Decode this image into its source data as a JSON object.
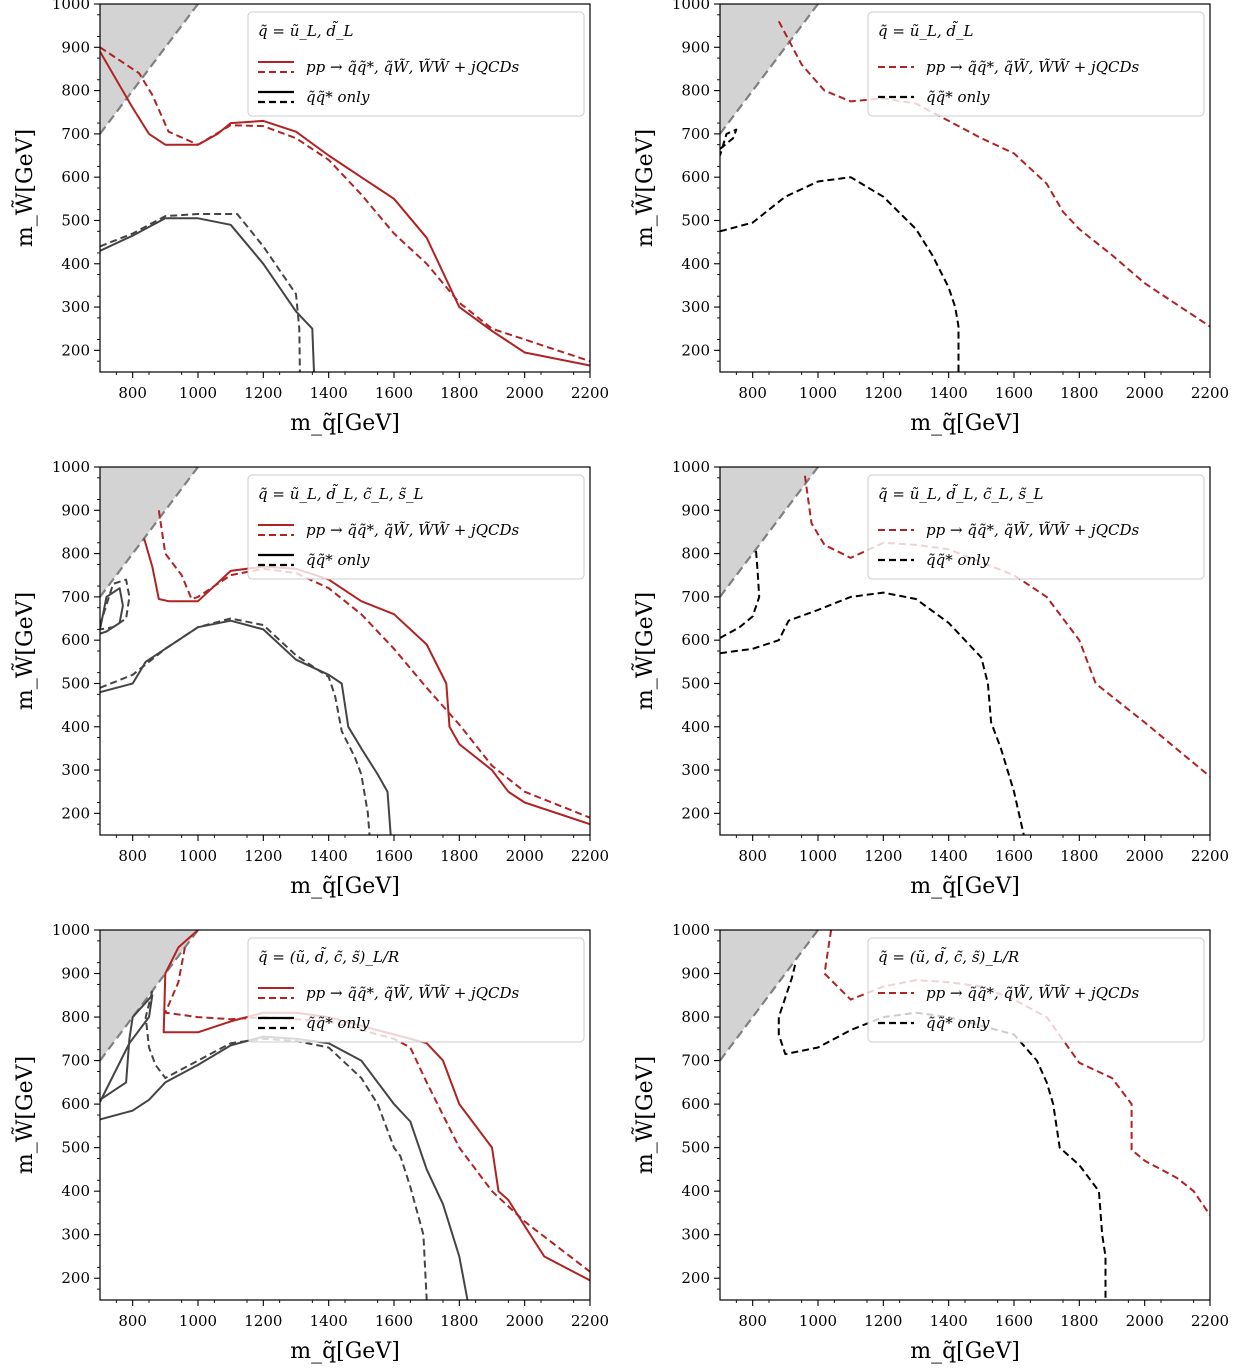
{
  "chart_data": [
    {
      "type": "line",
      "xlabel": "m_q̃[GeV]",
      "ylabel": "m_W̃[GeV]",
      "xlim": [
        700,
        2200
      ],
      "ylim": [
        150,
        1000
      ],
      "xticks": [
        800,
        1000,
        1200,
        1400,
        1600,
        1800,
        2000,
        2200
      ],
      "yticks": [
        200,
        300,
        400,
        500,
        600,
        700,
        800,
        900,
        1000
      ],
      "grid": false,
      "legend_position": "top-right",
      "legend": {
        "title": "q̃ = ũ_L, d̃_L",
        "entries": [
          "pp → q̃q̃*,  q̃W̃,  W̃W̃ + jQCDs",
          "q̃q̃* only"
        ]
      },
      "excluded_region": {
        "kinematic_line": "m_W̃ = m_q̃",
        "color": "#d3d3d3"
      },
      "colors": {
        "full": "#b22222",
        "only": "#444444"
      },
      "series": [
        {
          "style": "solid",
          "color": "#b22222",
          "x": [
            700,
            800,
            850,
            900,
            1000,
            1060,
            1100,
            1200,
            1300,
            1400,
            1500,
            1600,
            1700,
            1800,
            1900,
            2000,
            2200
          ],
          "y": [
            890,
            760,
            700,
            675,
            675,
            700,
            725,
            730,
            705,
            650,
            600,
            550,
            460,
            300,
            245,
            195,
            165
          ]
        },
        {
          "style": "dashed",
          "color": "#b22222",
          "x": [
            700,
            820,
            860,
            910,
            1000,
            1100,
            1200,
            1300,
            1400,
            1500,
            1600,
            1700,
            1800,
            1900,
            2000,
            2200
          ],
          "y": [
            900,
            840,
            790,
            705,
            675,
            720,
            718,
            690,
            640,
            560,
            470,
            400,
            310,
            250,
            225,
            175
          ]
        },
        {
          "style": "solid",
          "color": "#444444",
          "x": [
            700,
            800,
            900,
            1000,
            1100,
            1200,
            1300,
            1350,
            1355
          ],
          "y": [
            430,
            465,
            505,
            505,
            490,
            400,
            290,
            250,
            150
          ]
        },
        {
          "style": "dashed",
          "color": "#444444",
          "x": [
            700,
            800,
            900,
            1000,
            1120,
            1200,
            1300,
            1310,
            1312
          ],
          "y": [
            440,
            470,
            510,
            515,
            515,
            440,
            330,
            250,
            150
          ]
        }
      ]
    },
    {
      "type": "line",
      "xlabel": "m_q̃[GeV]",
      "ylabel": "m_W̃[GeV]",
      "xlim": [
        700,
        2200
      ],
      "ylim": [
        150,
        1000
      ],
      "xticks": [
        800,
        1000,
        1200,
        1400,
        1600,
        1800,
        2000,
        2200
      ],
      "yticks": [
        200,
        300,
        400,
        500,
        600,
        700,
        800,
        900,
        1000
      ],
      "grid": false,
      "legend_position": "top-right",
      "legend": {
        "title": "q̃ = ũ_L, d̃_L",
        "entries": [
          "pp → q̃q̃*,  q̃W̃,  W̃W̃ + jQCDs",
          "q̃q̃* only"
        ]
      },
      "excluded_region": {
        "kinematic_line": "m_W̃ = m_q̃",
        "color": "#d3d3d3"
      },
      "colors": {
        "full": "#b22222",
        "only": "#000000"
      },
      "series": [
        {
          "style": "dashed",
          "color": "#b22222",
          "x": [
            880,
            950,
            1020,
            1100,
            1200,
            1300,
            1400,
            1500,
            1600,
            1700,
            1750,
            1800,
            1900,
            2000,
            2200
          ],
          "y": [
            960,
            860,
            800,
            775,
            782,
            770,
            730,
            690,
            655,
            585,
            520,
            480,
            420,
            355,
            255
          ]
        },
        {
          "style": "dashed",
          "color": "#000000",
          "x": [
            700,
            740,
            750,
            720,
            700
          ],
          "y": [
            665,
            690,
            710,
            700,
            650
          ]
        },
        {
          "style": "dashed",
          "color": "#000000",
          "x": [
            700,
            800,
            850,
            900,
            1000,
            1100,
            1200,
            1300,
            1350,
            1400,
            1420,
            1430,
            1430
          ],
          "y": [
            475,
            495,
            525,
            555,
            590,
            600,
            555,
            480,
            420,
            345,
            300,
            255,
            150
          ]
        }
      ]
    },
    {
      "type": "line",
      "xlabel": "m_q̃[GeV]",
      "ylabel": "m_W̃[GeV]",
      "xlim": [
        700,
        2200
      ],
      "ylim": [
        150,
        1000
      ],
      "xticks": [
        800,
        1000,
        1200,
        1400,
        1600,
        1800,
        2000,
        2200
      ],
      "yticks": [
        200,
        300,
        400,
        500,
        600,
        700,
        800,
        900,
        1000
      ],
      "grid": false,
      "legend_position": "top-right",
      "legend": {
        "title": "q̃ = ũ_L, d̃_L, c̃_L, s̃_L",
        "entries": [
          "pp → q̃q̃*,  q̃W̃,  W̃W̃ + jQCDs",
          "q̃q̃* only"
        ]
      },
      "excluded_region": {
        "kinematic_line": "m_W̃ = m_q̃",
        "color": "#d3d3d3"
      },
      "colors": {
        "full": "#b22222",
        "only": "#444444"
      },
      "series": [
        {
          "style": "solid",
          "color": "#b22222",
          "x": [
            835,
            860,
            880,
            910,
            1000,
            1100,
            1200,
            1300,
            1400,
            1500,
            1600,
            1700,
            1760,
            1770,
            1800,
            1900,
            1950,
            2000,
            2200
          ],
          "y": [
            835,
            770,
            695,
            690,
            690,
            760,
            770,
            765,
            740,
            690,
            660,
            590,
            500,
            400,
            360,
            300,
            250,
            225,
            175
          ]
        },
        {
          "style": "dashed",
          "color": "#b22222",
          "x": [
            880,
            900,
            950,
            980,
            1000,
            1100,
            1200,
            1300,
            1400,
            1500,
            1600,
            1700,
            1800,
            1900,
            2000,
            2200
          ],
          "y": [
            900,
            800,
            750,
            695,
            700,
            750,
            765,
            755,
            720,
            660,
            580,
            490,
            405,
            310,
            250,
            190
          ]
        },
        {
          "style": "dashed",
          "color": "#444444",
          "x": [
            700,
            800,
            900,
            1000,
            1100,
            1200,
            1300,
            1400,
            1420,
            1440,
            1480,
            1500,
            1520,
            1525
          ],
          "y": [
            490,
            520,
            580,
            630,
            650,
            635,
            565,
            515,
            470,
            390,
            330,
            290,
            200,
            150
          ]
        },
        {
          "style": "solid",
          "color": "#444444",
          "x": [
            700,
            800,
            840,
            900,
            1000,
            1100,
            1200,
            1300,
            1400,
            1440,
            1460,
            1500,
            1550,
            1580,
            1590
          ],
          "y": [
            480,
            500,
            550,
            580,
            630,
            645,
            625,
            555,
            520,
            500,
            400,
            350,
            290,
            250,
            150
          ]
        },
        {
          "style": "solid",
          "color": "#444444",
          "x": [
            700,
            720,
            760,
            770,
            760,
            720,
            700
          ],
          "y": [
            625,
            700,
            720,
            680,
            640,
            620,
            615
          ]
        },
        {
          "style": "dashed",
          "color": "#444444",
          "x": [
            700,
            740,
            780,
            790,
            780,
            740,
            700
          ],
          "y": [
            635,
            730,
            740,
            700,
            650,
            630,
            625
          ]
        }
      ]
    },
    {
      "type": "line",
      "xlabel": "m_q̃[GeV]",
      "ylabel": "m_W̃[GeV]",
      "xlim": [
        700,
        2200
      ],
      "ylim": [
        150,
        1000
      ],
      "xticks": [
        800,
        1000,
        1200,
        1400,
        1600,
        1800,
        2000,
        2200
      ],
      "yticks": [
        200,
        300,
        400,
        500,
        600,
        700,
        800,
        900,
        1000
      ],
      "grid": false,
      "legend_position": "top-right",
      "legend": {
        "title": "q̃ = ũ_L, d̃_L, c̃_L, s̃_L",
        "entries": [
          "pp → q̃q̃*,  q̃W̃,  W̃W̃ + jQCDs",
          "q̃q̃* only"
        ]
      },
      "excluded_region": {
        "kinematic_line": "m_W̃ = m_q̃",
        "color": "#d3d3d3"
      },
      "colors": {
        "full": "#b22222",
        "only": "#000000"
      },
      "series": [
        {
          "style": "dashed",
          "color": "#b22222",
          "x": [
            960,
            980,
            1020,
            1100,
            1200,
            1300,
            1400,
            1500,
            1600,
            1700,
            1800,
            1850,
            1900,
            2000,
            2200
          ],
          "y": [
            980,
            870,
            820,
            790,
            825,
            820,
            810,
            780,
            750,
            700,
            600,
            500,
            470,
            410,
            285
          ]
        },
        {
          "style": "dashed",
          "color": "#000000",
          "x": [
            700,
            760,
            800,
            820,
            815,
            810
          ],
          "y": [
            605,
            630,
            655,
            700,
            760,
            810
          ]
        },
        {
          "style": "dashed",
          "color": "#000000",
          "x": [
            700,
            800,
            880,
            910,
            1000,
            1100,
            1200,
            1300,
            1400,
            1500,
            1520,
            1530,
            1560,
            1600,
            1630
          ],
          "y": [
            570,
            580,
            600,
            645,
            670,
            700,
            710,
            695,
            640,
            560,
            500,
            410,
            350,
            250,
            150
          ]
        }
      ]
    },
    {
      "type": "line",
      "xlabel": "m_q̃[GeV]",
      "ylabel": "m_W̃[GeV]",
      "xlim": [
        700,
        2200
      ],
      "ylim": [
        150,
        1000
      ],
      "xticks": [
        800,
        1000,
        1200,
        1400,
        1600,
        1800,
        2000,
        2200
      ],
      "yticks": [
        200,
        300,
        400,
        500,
        600,
        700,
        800,
        900,
        1000
      ],
      "grid": false,
      "legend_position": "top-right",
      "legend": {
        "title": "q̃ = (ũ, d̃, c̃, s̃)_L/R",
        "entries": [
          "pp → q̃q̃*,  q̃W̃,  W̃W̃ + jQCDs",
          "q̃q̃* only"
        ]
      },
      "excluded_region": {
        "kinematic_line": "m_W̃ = m_q̃",
        "color": "#d3d3d3"
      },
      "colors": {
        "full": "#b22222",
        "only": "#444444"
      },
      "series": [
        {
          "style": "solid",
          "color": "#b22222",
          "x": [
            1000,
            940,
            900,
            895,
            1000,
            1100,
            1200,
            1300,
            1400,
            1500,
            1600,
            1700,
            1750,
            1800,
            1900,
            1920,
            1950,
            2000,
            2060,
            2200
          ],
          "y": [
            1000,
            960,
            900,
            765,
            765,
            790,
            810,
            810,
            800,
            780,
            760,
            740,
            700,
            600,
            500,
            400,
            380,
            320,
            250,
            195
          ]
        },
        {
          "style": "dashed",
          "color": "#b22222",
          "x": [
            960,
            940,
            900,
            1000,
            1100,
            1200,
            1300,
            1400,
            1500,
            1600,
            1650,
            1700,
            1720,
            1800,
            1900,
            2000,
            2200
          ],
          "y": [
            960,
            880,
            810,
            800,
            795,
            800,
            795,
            790,
            770,
            750,
            730,
            650,
            620,
            500,
            400,
            330,
            215
          ]
        },
        {
          "style": "solid",
          "color": "#444444",
          "x": [
            700,
            780,
            790,
            800,
            860,
            850,
            820,
            790,
            700
          ],
          "y": [
            610,
            650,
            750,
            800,
            850,
            800,
            770,
            740,
            605
          ]
        },
        {
          "style": "solid",
          "color": "#444444",
          "x": [
            700,
            800,
            850,
            900,
            1000,
            1100,
            1200,
            1300,
            1400,
            1500,
            1600,
            1650,
            1700,
            1750,
            1800,
            1825
          ],
          "y": [
            565,
            585,
            610,
            650,
            690,
            735,
            755,
            750,
            740,
            700,
            600,
            560,
            450,
            370,
            250,
            150
          ]
        },
        {
          "style": "dashed",
          "color": "#444444",
          "x": [
            860,
            840,
            850,
            870,
            900,
            1000,
            1100,
            1200,
            1300,
            1400,
            1500,
            1550,
            1600,
            1620,
            1650,
            1690,
            1700
          ],
          "y": [
            860,
            800,
            730,
            690,
            660,
            700,
            740,
            750,
            745,
            730,
            660,
            600,
            500,
            480,
            410,
            300,
            150
          ]
        }
      ]
    },
    {
      "type": "line",
      "xlabel": "m_q̃[GeV]",
      "ylabel": "m_W̃[GeV]",
      "xlim": [
        700,
        2200
      ],
      "ylim": [
        150,
        1000
      ],
      "xticks": [
        800,
        1000,
        1200,
        1400,
        1600,
        1800,
        2000,
        2200
      ],
      "yticks": [
        200,
        300,
        400,
        500,
        600,
        700,
        800,
        900,
        1000
      ],
      "grid": false,
      "legend_position": "top-right",
      "legend": {
        "title": "q̃ = (ũ, d̃, c̃, s̃)_L/R",
        "entries": [
          "pp → q̃q̃*,  q̃W̃,  W̃W̃ + jQCDs",
          "q̃q̃* only"
        ]
      },
      "excluded_region": {
        "kinematic_line": "m_W̃ = m_q̃",
        "color": "#d3d3d3"
      },
      "colors": {
        "full": "#b22222",
        "only": "#000000"
      },
      "series": [
        {
          "style": "dashed",
          "color": "#b22222",
          "x": [
            1040,
            1020,
            1100,
            1200,
            1300,
            1400,
            1500,
            1600,
            1700,
            1800,
            1900,
            1960,
            1960,
            2000,
            2100,
            2150,
            2200
          ],
          "y": [
            1000,
            900,
            840,
            870,
            885,
            880,
            870,
            840,
            800,
            695,
            660,
            600,
            495,
            470,
            430,
            400,
            345
          ]
        },
        {
          "style": "dashed",
          "color": "#000000",
          "x": [
            930,
            920,
            880,
            880,
            900,
            1000,
            1100,
            1200,
            1300,
            1400,
            1500,
            1600,
            1670,
            1700,
            1720,
            1740,
            1800,
            1860,
            1870,
            1880,
            1880
          ],
          "y": [
            920,
            890,
            800,
            760,
            715,
            730,
            770,
            800,
            810,
            800,
            780,
            760,
            700,
            650,
            600,
            500,
            460,
            400,
            300,
            250,
            150
          ]
        }
      ]
    }
  ]
}
